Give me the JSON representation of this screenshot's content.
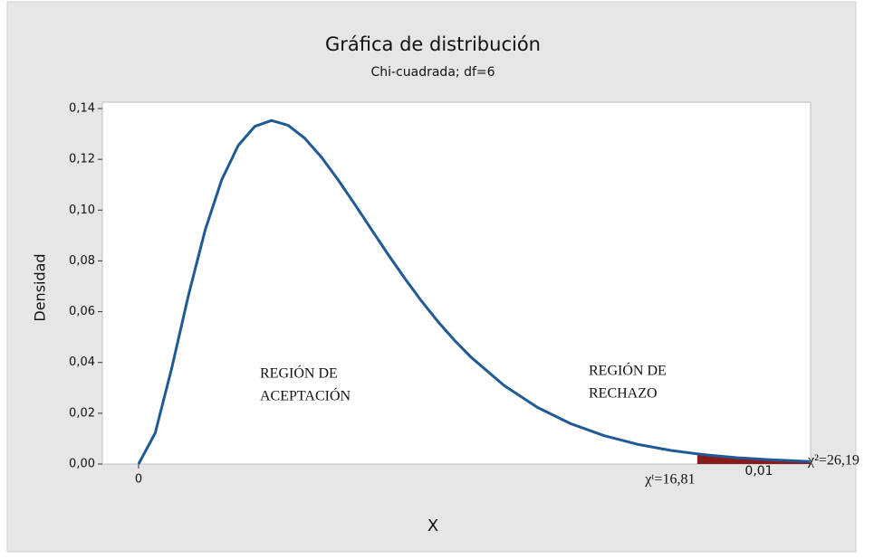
{
  "chart_data": {
    "type": "line",
    "title": "Gráfica de distribución",
    "subtitle": "Chi-cuadrada; df=6",
    "xlabel": "X",
    "ylabel": "Densidad",
    "x": [
      0,
      0.5,
      1,
      1.5,
      2,
      2.5,
      3,
      3.5,
      4,
      4.5,
      5,
      5.5,
      6,
      6.5,
      7,
      7.5,
      8,
      8.5,
      9,
      9.5,
      10,
      11,
      12,
      13,
      14,
      15,
      16,
      16.81,
      17,
      18,
      19,
      20,
      20.2
    ],
    "values": [
      0,
      0.0122,
      0.0379,
      0.0664,
      0.092,
      0.1119,
      0.1255,
      0.133,
      0.1353,
      0.1334,
      0.1283,
      0.1209,
      0.112,
      0.1024,
      0.0925,
      0.0827,
      0.0733,
      0.0644,
      0.0562,
      0.0488,
      0.0421,
      0.0309,
      0.0223,
      0.0159,
      0.0112,
      0.0078,
      0.0054,
      0.004,
      0.0037,
      0.0025,
      0.0017,
      0.0011,
      0.001
    ],
    "color": "#1f5a96",
    "shade_color": "#8b1a1a",
    "xlim": [
      -1.09,
      20.22
    ],
    "ylim": [
      0,
      0.1425
    ],
    "xticks": [
      0
    ],
    "yticks": [
      {
        "value": 0,
        "label": "0,00"
      },
      {
        "value": 0.02,
        "label": "0,02"
      },
      {
        "value": 0.04,
        "label": "0,04"
      },
      {
        "value": 0.06,
        "label": "0,06"
      },
      {
        "value": 0.08,
        "label": "0,08"
      },
      {
        "value": 0.1,
        "label": "0,10"
      },
      {
        "value": 0.12,
        "label": "0,12"
      },
      {
        "value": 0.14,
        "label": "0,14"
      }
    ],
    "critical": {
      "x": 16.81,
      "label": "χᵗ=16,81"
    },
    "tail_area": {
      "value": 0.01,
      "label": "0,01"
    },
    "statistic_label": "χ²=26,19",
    "region_labels": [
      [
        "REGIÓN DE",
        "ACEPTACIÓN"
      ],
      [
        "REGIÓN DE",
        "RECHAZO"
      ]
    ]
  }
}
